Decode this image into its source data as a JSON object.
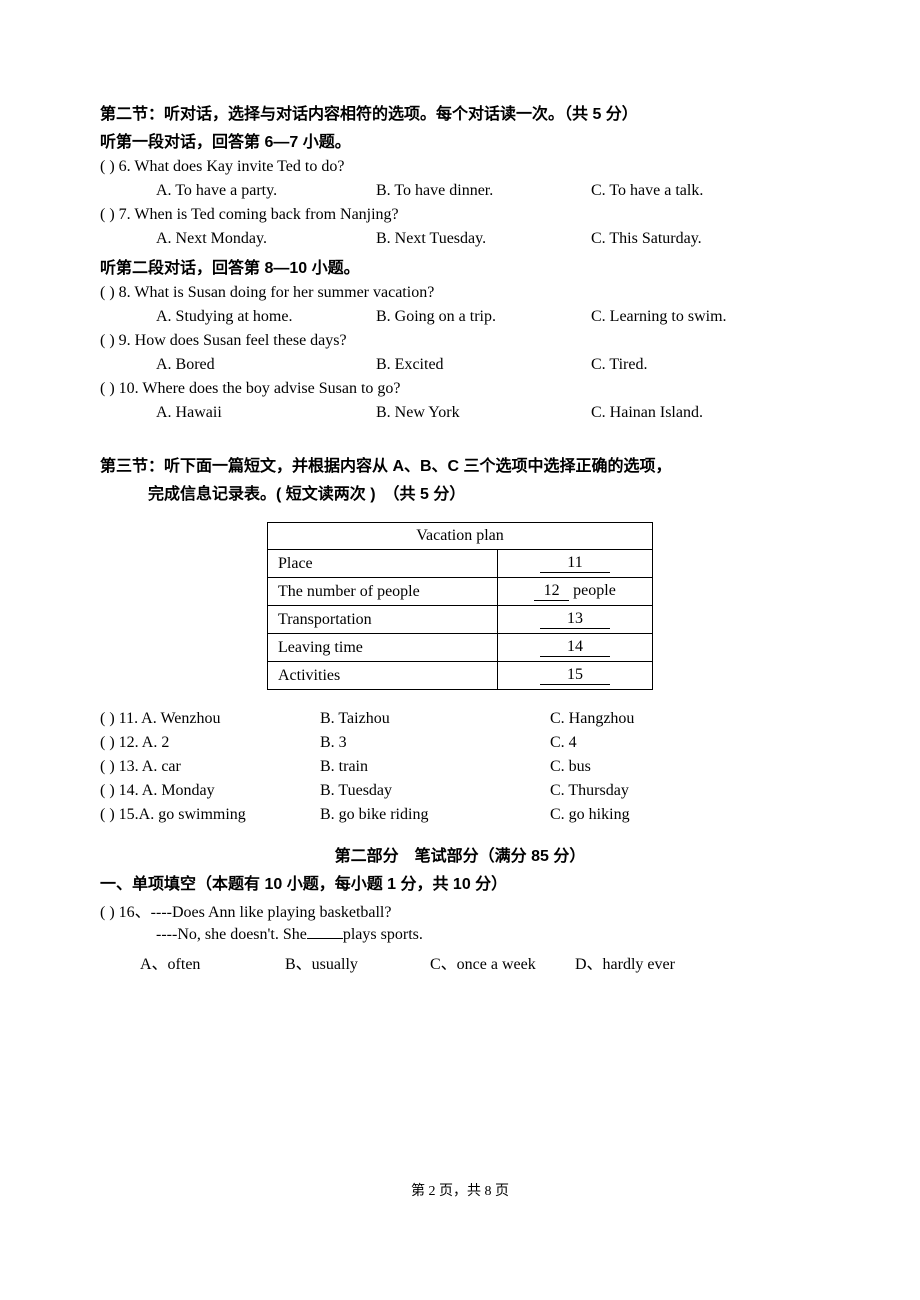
{
  "section2": {
    "title": "第二节：听对话，选择与对话内容相符的选项。每个对话读一次。（共 5 分）",
    "dialog1_title": "听第一段对话，回答第 6—7 小题。",
    "dialog2_title": "听第二段对话，回答第 8—10 小题。",
    "q6": {
      "paren": "(      ) ",
      "text": "6. What does Kay invite Ted to do?",
      "a": "A. To have a party.",
      "b": "B. To have dinner.",
      "c": "C. To have a talk."
    },
    "q7": {
      "paren": "(      ) ",
      "text": "7. When is Ted coming back from Nanjing?",
      "a": "A. Next Monday.",
      "b": "B. Next Tuesday.",
      "c": "C. This Saturday."
    },
    "q8": {
      "paren": "(      ) ",
      "text": "8. What is Susan doing for her summer vacation?",
      "a": "A. Studying at home.",
      "b": "B. Going on a trip.",
      "c": "C. Learning to swim."
    },
    "q9": {
      "paren": "(      ) ",
      "text": "9. How does Susan feel these days?",
      "a": "A. Bored",
      "b": "B. Excited",
      "c": "C. Tired."
    },
    "q10": {
      "paren": "(      ) ",
      "text": "10. Where does the boy advise Susan to go?",
      "a": "A. Hawaii",
      "b": "B. New York",
      "c": "C. Hainan Island."
    }
  },
  "section3": {
    "title1": "第三节：听下面一篇短文，并根据内容从 A、B、C 三个选项中选择正确的选项，",
    "title2": "完成信息记录表。( 短文读两次 )　（共 5 分）",
    "table": {
      "header": "Vacation plan",
      "rows": [
        {
          "label": "Place",
          "blank": "11"
        },
        {
          "label": "The number of people",
          "blank": "12",
          "suffix": " people"
        },
        {
          "label": "Transportation",
          "blank": "13"
        },
        {
          "label": "Leaving time",
          "blank": "14"
        },
        {
          "label": "Activities",
          "blank": "15"
        }
      ]
    },
    "q11": {
      "p": "(      ) ",
      "a": "11. A. Wenzhou",
      "b": "B. Taizhou",
      "c": "C. Hangzhou"
    },
    "q12": {
      "p": "(      ) ",
      "a": "12. A. 2",
      "b": "B. 3",
      "c": "C. 4"
    },
    "q13": {
      "p": "(      ) ",
      "a": "13. A. car",
      "b": "B. train",
      "c": "C. bus"
    },
    "q14": {
      "p": "(      ) ",
      "a": "14. A. Monday",
      "b": "B. Tuesday",
      "c": "C. Thursday"
    },
    "q15": {
      "p": "(      ) ",
      "a": "15.A. go swimming",
      "b": "B. go bike riding",
      "c": "C. go hiking"
    }
  },
  "part2": {
    "title": "第二部分　笔试部分（满分 85 分）",
    "sub": "一、单项填空（本题有 10 小题，每小题 1 分，共 10 分）",
    "q16": {
      "paren": "(      ) ",
      "line1": "16、----Does Ann like playing basketball?",
      "line2_a": "----No, she doesn't. She",
      "line2_b": "plays sports.",
      "a": "A、often",
      "b": "B、usually",
      "c": "C、once a week",
      "d": "D、hardly ever"
    }
  },
  "footer": "第 2 页，共 8 页"
}
